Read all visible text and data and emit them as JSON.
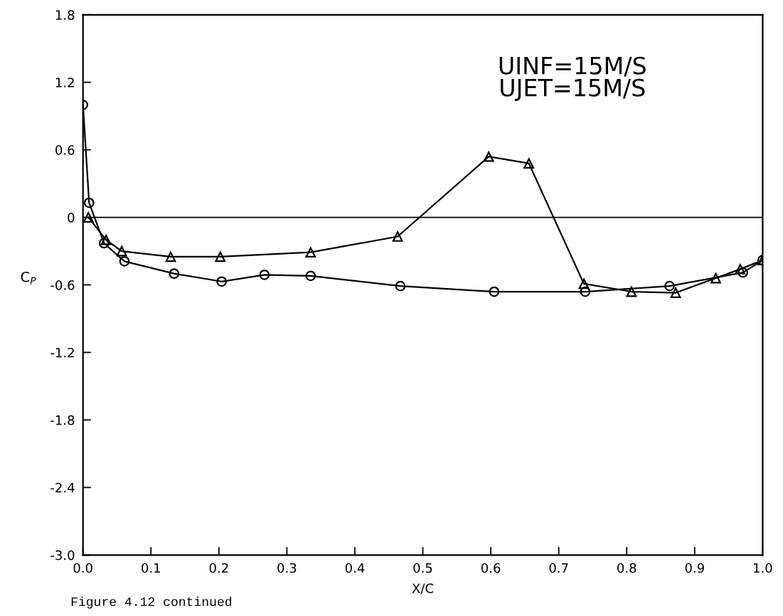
{
  "chart_data": {
    "type": "line",
    "xlabel": "X/C",
    "ylabel": "C$_{P}$",
    "annotations": [
      "UINF=15M/S\nUJET=15M/S",
      "Figure 4.12 continued"
    ],
    "xlim": [
      0.0,
      1.0
    ],
    "xticks": [
      {
        "value": 0,
        "label": "0.0"
      },
      0.1,
      0.2,
      0.3,
      0.4,
      0.5,
      0.6,
      0.7,
      0.8,
      0.9,
      {
        "value": 1,
        "label": "1.0"
      }
    ],
    "ylim": [
      -3.0,
      1.8
    ],
    "yticks": [
      {
        "value": -3,
        "label": "-3.0"
      },
      -2.4,
      -1.8,
      -1.2,
      -0.6,
      0,
      0.6,
      1.2,
      1.8
    ],
    "grid": false,
    "legend": false,
    "line_style": "solid",
    "ref_lines": [
      {
        "axis": "y",
        "value": 0,
        "color": "#000000"
      }
    ],
    "series": [
      {
        "color": "#000000",
        "marker": "circle",
        "x": [
          0.0,
          0.009,
          0.031,
          0.061,
          0.134,
          0.204,
          0.267,
          0.335,
          0.467,
          0.605,
          0.739,
          0.863,
          0.971,
          1.0
        ],
        "values": [
          1.0,
          0.13,
          -0.23,
          -0.39,
          -0.5,
          -0.57,
          -0.51,
          -0.52,
          -0.61,
          -0.66,
          -0.66,
          -0.61,
          -0.49,
          -0.38
        ]
      },
      {
        "color": "#000000",
        "marker": "triangle",
        "x": [
          0.008,
          0.034,
          0.057,
          0.129,
          0.202,
          0.335,
          0.463,
          0.597,
          0.656,
          0.737,
          0.807,
          0.872,
          0.931,
          0.967,
          1.0
        ],
        "values": [
          0.0,
          -0.2,
          -0.3,
          -0.35,
          -0.35,
          -0.31,
          -0.17,
          0.54,
          0.48,
          -0.59,
          -0.66,
          -0.67,
          -0.54,
          -0.46,
          -0.38
        ]
      }
    ]
  }
}
